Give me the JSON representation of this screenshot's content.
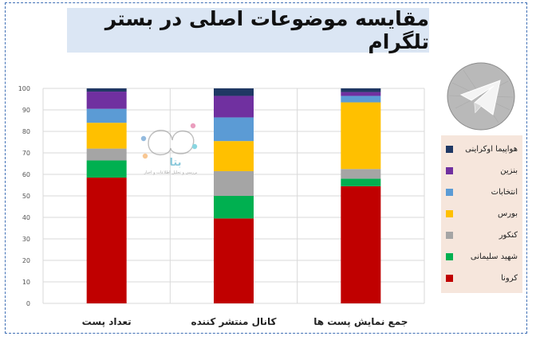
{
  "title": "مقایسه موضوعات اصلی در بستر تلگرام",
  "watermark": {
    "name": "بتا",
    "tagline": "بررسی و تحلیل اطلاعات و اخبار"
  },
  "colors": {
    "frame": "#3f6fb5",
    "title_bg": "#dbe6f4",
    "legend_bg": "#f6e6dc"
  },
  "chart_data": {
    "type": "bar",
    "stacked": true,
    "categories": [
      "تعداد پست",
      "کانال منتشر کننده",
      "جمع نمایش پست ها"
    ],
    "yticks": [
      "0",
      "10",
      "20",
      "30",
      "40",
      "50",
      "60",
      "70",
      "80",
      "90",
      "100"
    ],
    "ylim": [
      0,
      100
    ],
    "grid": true,
    "legend_position": "right",
    "series": [
      {
        "name": "کرونا",
        "color": "#c00000",
        "values": [
          58.5,
          39.5,
          54.5
        ]
      },
      {
        "name": "شهید سلیمانی",
        "color": "#00b050",
        "values": [
          8,
          10.5,
          3.5
        ]
      },
      {
        "name": "کنکور",
        "color": "#a5a5a5",
        "values": [
          5.5,
          11.5,
          4.5
        ]
      },
      {
        "name": "بورس",
        "color": "#ffc000",
        "values": [
          12,
          14,
          31
        ]
      },
      {
        "name": "انتخابات",
        "color": "#5b9bd5",
        "values": [
          6.5,
          11,
          3
        ]
      },
      {
        "name": "بنزین",
        "color": "#7030a0",
        "values": [
          8,
          10,
          1.8
        ]
      },
      {
        "name": "هواپیما اوکراینی",
        "color": "#1f3864",
        "values": [
          1.5,
          3.5,
          1.7
        ]
      }
    ]
  }
}
